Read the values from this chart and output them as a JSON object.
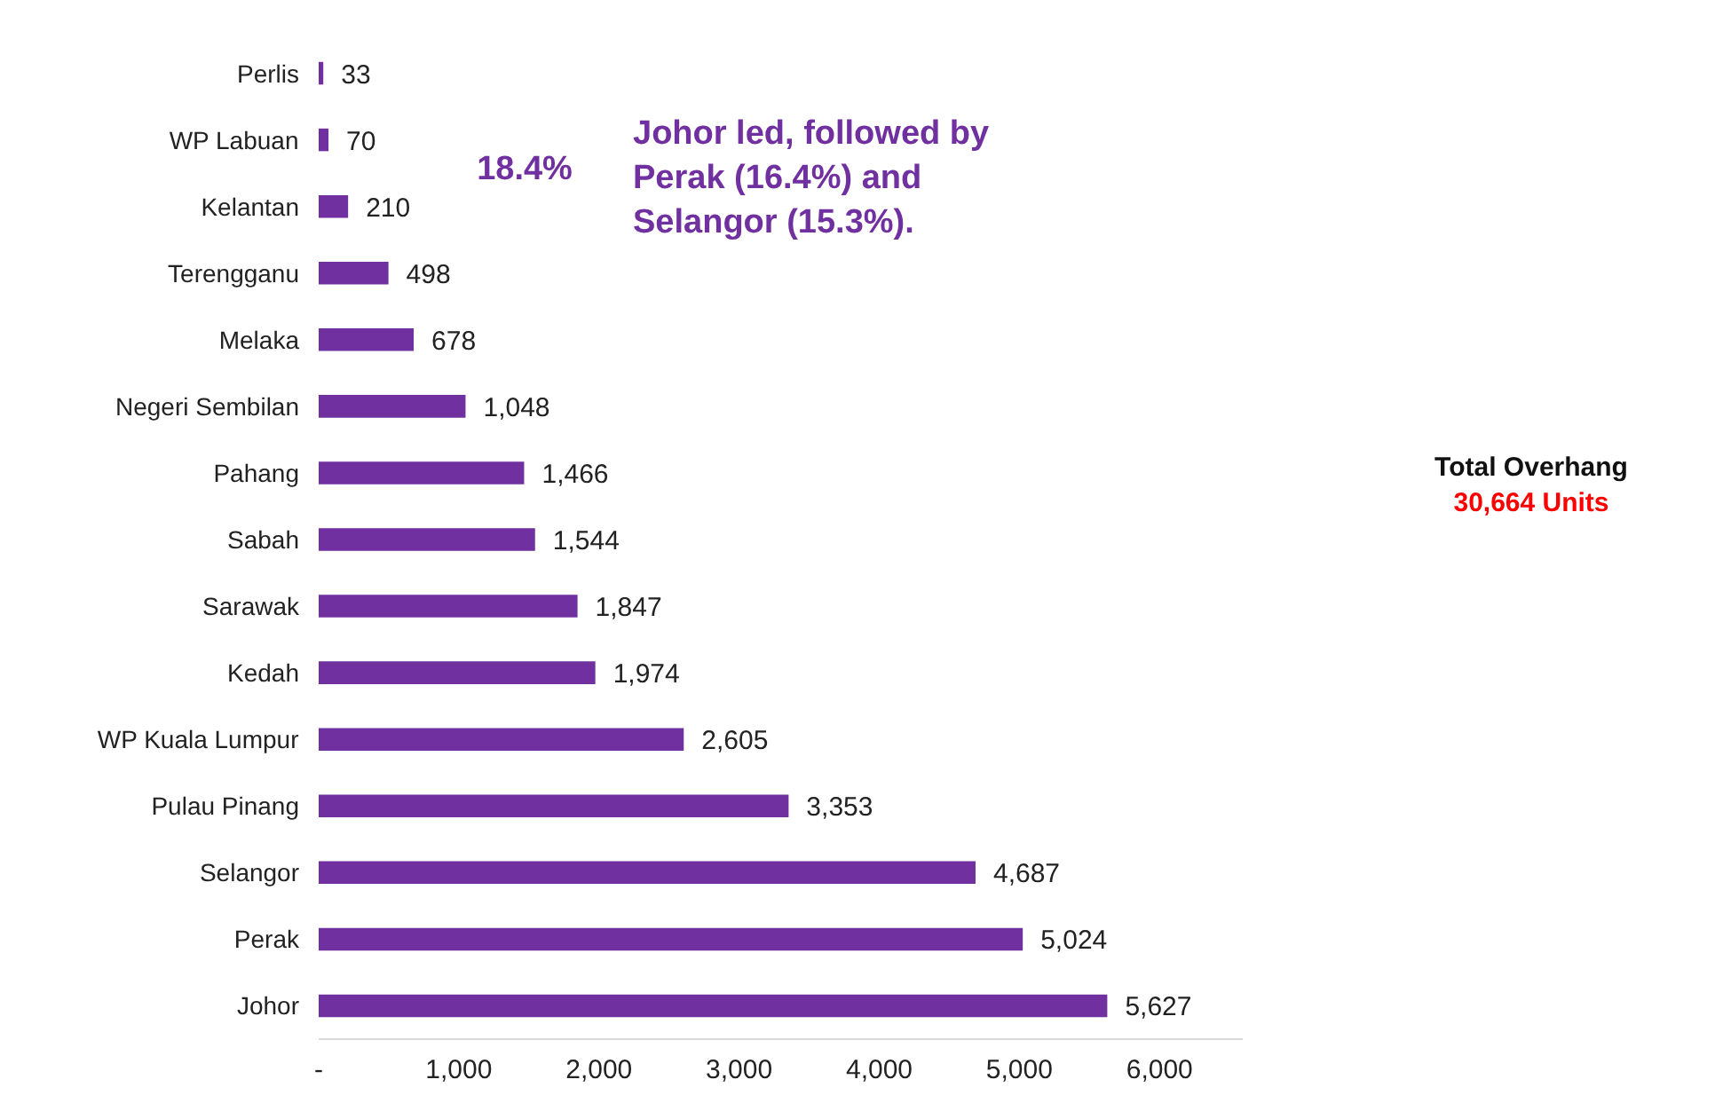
{
  "chart_data": {
    "type": "bar",
    "orientation": "horizontal",
    "categories": [
      "Perlis",
      "WP Labuan",
      "Kelantan",
      "Terengganu",
      "Melaka",
      "Negeri Sembilan",
      "Pahang",
      "Sabah",
      "Sarawak",
      "Kedah",
      "WP Kuala Lumpur",
      "Pulau Pinang",
      "Selangor",
      "Perak",
      "Johor"
    ],
    "values": [
      33,
      70,
      210,
      498,
      678,
      1048,
      1466,
      1544,
      1847,
      1974,
      2605,
      3353,
      4687,
      5024,
      5627
    ],
    "value_labels": [
      "33",
      "70",
      "210",
      "498",
      "678",
      "1,048",
      "1,466",
      "1,544",
      "1,847",
      "1,974",
      "2,605",
      "3,353",
      "4,687",
      "5,024",
      "5,627"
    ],
    "color": "#7030a0",
    "xlim": [
      0,
      6600
    ],
    "xticks": [
      {
        "value": 0,
        "label": "-"
      },
      {
        "value": 1000,
        "label": "1,000"
      },
      {
        "value": 2000,
        "label": "2,000"
      },
      {
        "value": 3000,
        "label": "3,000"
      },
      {
        "value": 4000,
        "label": "4,000"
      },
      {
        "value": 5000,
        "label": "5,000"
      },
      {
        "value": 6000,
        "label": "6,000"
      }
    ],
    "grid": false,
    "annotations": [
      "18.4%",
      "Johor led, followed by Perak (16.4%) and Selangor (15.3%).",
      "Total Overhang",
      "30,664 Units"
    ]
  }
}
